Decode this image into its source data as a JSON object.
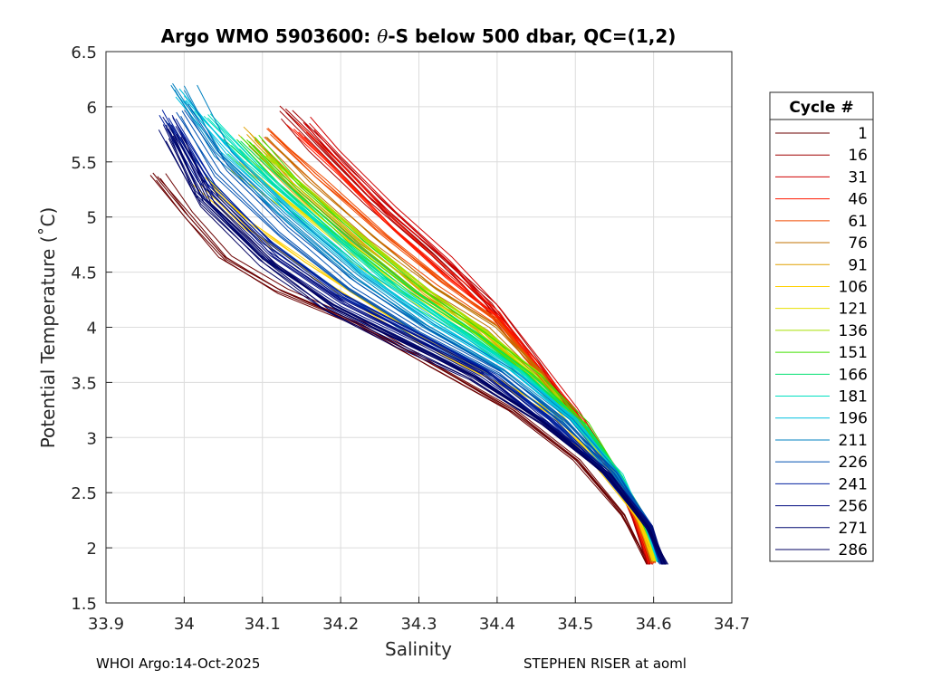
{
  "chart_data": {
    "type": "line",
    "title": "Argo WMO 5903600: θ-S below 500 dbar,  QC=(1,2)",
    "title_parts": {
      "prefix": "Argo WMO 5903600: ",
      "symbol": "θ",
      "suffix": "-S below 500 dbar,  QC=(1,2)"
    },
    "xlabel": "Salinity",
    "ylabel": "Potential Temperature (˚C)",
    "xlim": [
      33.9,
      34.7
    ],
    "ylim": [
      1.5,
      6.5
    ],
    "xticks": [
      33.9,
      34,
      34.1,
      34.2,
      34.3,
      34.4,
      34.5,
      34.6,
      34.7
    ],
    "xtick_labels": [
      "33.9",
      "34",
      "34.1",
      "34.2",
      "34.3",
      "34.4",
      "34.5",
      "34.6",
      "34.7"
    ],
    "yticks": [
      1.5,
      2,
      2.5,
      3,
      3.5,
      4,
      4.5,
      5,
      5.5,
      6,
      6.5
    ],
    "ytick_labels": [
      "1.5",
      "2",
      "2.5",
      "3",
      "3.5",
      "4",
      "4.5",
      "5",
      "5.5",
      "6",
      "6.5"
    ],
    "grid": true,
    "legend": {
      "title": "Cycle #",
      "placement": "right-outside",
      "entries": [
        {
          "label": "1",
          "color": "#6b0000"
        },
        {
          "label": "16",
          "color": "#a00000"
        },
        {
          "label": "31",
          "color": "#d00000"
        },
        {
          "label": "46",
          "color": "#ff1a00"
        },
        {
          "label": "61",
          "color": "#f04a00"
        },
        {
          "label": "76",
          "color": "#c07000"
        },
        {
          "label": "91",
          "color": "#e0a000"
        },
        {
          "label": "106",
          "color": "#ffd000"
        },
        {
          "label": "121",
          "color": "#e8e000"
        },
        {
          "label": "136",
          "color": "#a8e000"
        },
        {
          "label": "151",
          "color": "#40e000"
        },
        {
          "label": "166",
          "color": "#00e070"
        },
        {
          "label": "181",
          "color": "#00e0c0"
        },
        {
          "label": "196",
          "color": "#00c0e0"
        },
        {
          "label": "211",
          "color": "#0080c0"
        },
        {
          "label": "226",
          "color": "#0050b0"
        },
        {
          "label": "241",
          "color": "#0020a0"
        },
        {
          "label": "256",
          "color": "#000c80"
        },
        {
          "label": "271",
          "color": "#000a70"
        },
        {
          "label": "286",
          "color": "#000060"
        }
      ]
    },
    "series": [
      {
        "name": "1",
        "color": "#6b0000",
        "s": [
          33.96,
          34.0,
          34.05,
          34.12,
          34.22,
          34.32,
          34.42,
          34.5,
          34.56,
          34.595
        ],
        "t": [
          5.4,
          5.05,
          4.65,
          4.35,
          4.05,
          3.65,
          3.25,
          2.8,
          2.3,
          1.85
        ]
      },
      {
        "name": "16",
        "color": "#a00000",
        "s": [
          34.13,
          34.17,
          34.24,
          34.32,
          34.39,
          34.44,
          34.49,
          34.54,
          34.573,
          34.592
        ],
        "t": [
          5.95,
          5.65,
          5.15,
          4.65,
          4.2,
          3.75,
          3.3,
          2.8,
          2.3,
          1.85
        ]
      },
      {
        "name": "31",
        "color": "#d00000",
        "s": [
          34.16,
          34.2,
          34.27,
          34.34,
          34.4,
          34.45,
          34.5,
          34.545,
          34.575,
          34.595
        ],
        "t": [
          5.85,
          5.55,
          5.05,
          4.6,
          4.15,
          3.7,
          3.25,
          2.78,
          2.3,
          1.85
        ]
      },
      {
        "name": "46",
        "color": "#ff1a00",
        "s": [
          34.14,
          34.19,
          34.26,
          34.33,
          34.4,
          34.45,
          34.5,
          34.545,
          34.577,
          34.597
        ],
        "t": [
          5.8,
          5.45,
          4.95,
          4.5,
          4.1,
          3.65,
          3.2,
          2.75,
          2.28,
          1.86
        ]
      },
      {
        "name": "61",
        "color": "#f04a00",
        "s": [
          34.11,
          34.17,
          34.25,
          34.33,
          34.4,
          34.45,
          34.5,
          34.545,
          34.58,
          34.6
        ],
        "t": [
          5.75,
          5.35,
          4.85,
          4.4,
          4.05,
          3.62,
          3.18,
          2.73,
          2.25,
          1.86
        ]
      },
      {
        "name": "76",
        "color": "#c07000",
        "s": [
          34.09,
          34.15,
          34.23,
          34.31,
          34.39,
          34.45,
          34.5,
          34.55,
          34.585,
          34.6
        ],
        "t": [
          5.7,
          5.3,
          4.8,
          4.35,
          4.0,
          3.58,
          3.15,
          2.7,
          2.22,
          1.87
        ]
      },
      {
        "name": "91",
        "color": "#e0a000",
        "s": [
          34.08,
          34.14,
          34.22,
          34.3,
          34.38,
          34.44,
          34.5,
          34.55,
          34.585,
          34.602
        ],
        "t": [
          5.75,
          5.3,
          4.8,
          4.35,
          3.98,
          3.58,
          3.15,
          2.7,
          2.22,
          1.88
        ]
      },
      {
        "name": "106",
        "color": "#ffd000",
        "s": [
          34.02,
          34.07,
          34.15,
          34.24,
          34.32,
          34.4,
          34.47,
          34.53,
          34.58,
          34.6
        ],
        "t": [
          5.3,
          4.95,
          4.55,
          4.15,
          3.8,
          3.5,
          3.2,
          2.75,
          2.25,
          1.88
        ]
      },
      {
        "name": "121",
        "color": "#e8e000",
        "s": [
          34.07,
          34.13,
          34.21,
          34.29,
          34.37,
          34.44,
          34.5,
          34.55,
          34.588,
          34.603
        ],
        "t": [
          5.5,
          5.15,
          4.7,
          4.3,
          3.95,
          3.58,
          3.15,
          2.7,
          2.22,
          1.88
        ]
      },
      {
        "name": "136",
        "color": "#a8e000",
        "s": [
          34.1,
          34.16,
          34.24,
          34.32,
          34.39,
          34.45,
          34.5,
          34.55,
          34.588,
          34.605
        ],
        "t": [
          5.6,
          5.25,
          4.75,
          4.3,
          3.95,
          3.6,
          3.18,
          2.72,
          2.24,
          1.88
        ]
      },
      {
        "name": "151",
        "color": "#40e000",
        "s": [
          34.08,
          34.14,
          34.22,
          34.3,
          34.38,
          34.45,
          34.51,
          34.555,
          34.59,
          34.606
        ],
        "t": [
          5.7,
          5.25,
          4.75,
          4.3,
          3.92,
          3.55,
          3.12,
          2.68,
          2.22,
          1.88
        ]
      },
      {
        "name": "166",
        "color": "#00e070",
        "s": [
          34.06,
          34.12,
          34.2,
          34.28,
          34.36,
          34.44,
          34.51,
          34.56,
          34.592,
          34.607
        ],
        "t": [
          5.65,
          5.25,
          4.78,
          4.32,
          3.95,
          3.55,
          3.1,
          2.65,
          2.2,
          1.88
        ]
      },
      {
        "name": "181",
        "color": "#00e0c0",
        "s": [
          34.03,
          34.09,
          34.17,
          34.25,
          34.34,
          34.43,
          34.5,
          34.555,
          34.592,
          34.608
        ],
        "t": [
          5.9,
          5.45,
          4.95,
          4.45,
          4.02,
          3.6,
          3.15,
          2.68,
          2.2,
          1.87
        ]
      },
      {
        "name": "196",
        "color": "#00c0e0",
        "s": [
          34.0,
          34.06,
          34.14,
          34.23,
          34.32,
          34.42,
          34.5,
          34.555,
          34.594,
          34.609
        ],
        "t": [
          6.1,
          5.6,
          5.05,
          4.5,
          4.05,
          3.62,
          3.15,
          2.68,
          2.2,
          1.87
        ]
      },
      {
        "name": "211",
        "color": "#0080c0",
        "s": [
          34.0,
          34.05,
          34.13,
          34.22,
          34.31,
          34.41,
          34.49,
          34.55,
          34.595,
          34.61
        ],
        "t": [
          6.15,
          5.55,
          5.0,
          4.45,
          4.0,
          3.6,
          3.15,
          2.68,
          2.2,
          1.86
        ]
      },
      {
        "name": "226",
        "color": "#0050b0",
        "s": [
          33.99,
          34.04,
          34.12,
          34.21,
          34.3,
          34.4,
          34.48,
          34.55,
          34.595,
          34.61
        ],
        "t": [
          5.95,
          5.4,
          4.85,
          4.35,
          3.95,
          3.58,
          3.15,
          2.68,
          2.2,
          1.86
        ]
      },
      {
        "name": "241",
        "color": "#0020a0",
        "s": [
          33.98,
          34.03,
          34.11,
          34.2,
          34.3,
          34.39,
          34.47,
          34.54,
          34.593,
          34.612
        ],
        "t": [
          5.9,
          5.3,
          4.75,
          4.28,
          3.92,
          3.58,
          3.15,
          2.68,
          2.2,
          1.85
        ]
      },
      {
        "name": "256",
        "color": "#000c80",
        "s": [
          33.98,
          34.03,
          34.11,
          34.2,
          34.29,
          34.38,
          34.46,
          34.54,
          34.594,
          34.613
        ],
        "t": [
          5.85,
          5.2,
          4.65,
          4.22,
          3.9,
          3.58,
          3.15,
          2.68,
          2.2,
          1.85
        ]
      },
      {
        "name": "271",
        "color": "#000a70",
        "s": [
          33.98,
          34.02,
          34.1,
          34.19,
          34.28,
          34.37,
          34.46,
          34.54,
          34.595,
          34.614
        ],
        "t": [
          5.8,
          5.2,
          4.62,
          4.2,
          3.88,
          3.56,
          3.14,
          2.67,
          2.18,
          1.85
        ]
      },
      {
        "name": "286",
        "color": "#000060",
        "s": [
          33.99,
          34.03,
          34.11,
          34.19,
          34.28,
          34.37,
          34.46,
          34.54,
          34.595,
          34.615
        ],
        "t": [
          5.75,
          5.15,
          4.6,
          4.18,
          3.86,
          3.55,
          3.13,
          2.67,
          2.18,
          1.85
        ]
      }
    ]
  },
  "footer": {
    "left": "WHOI Argo:14-Oct-2025",
    "right": "STEPHEN RISER at aoml"
  }
}
